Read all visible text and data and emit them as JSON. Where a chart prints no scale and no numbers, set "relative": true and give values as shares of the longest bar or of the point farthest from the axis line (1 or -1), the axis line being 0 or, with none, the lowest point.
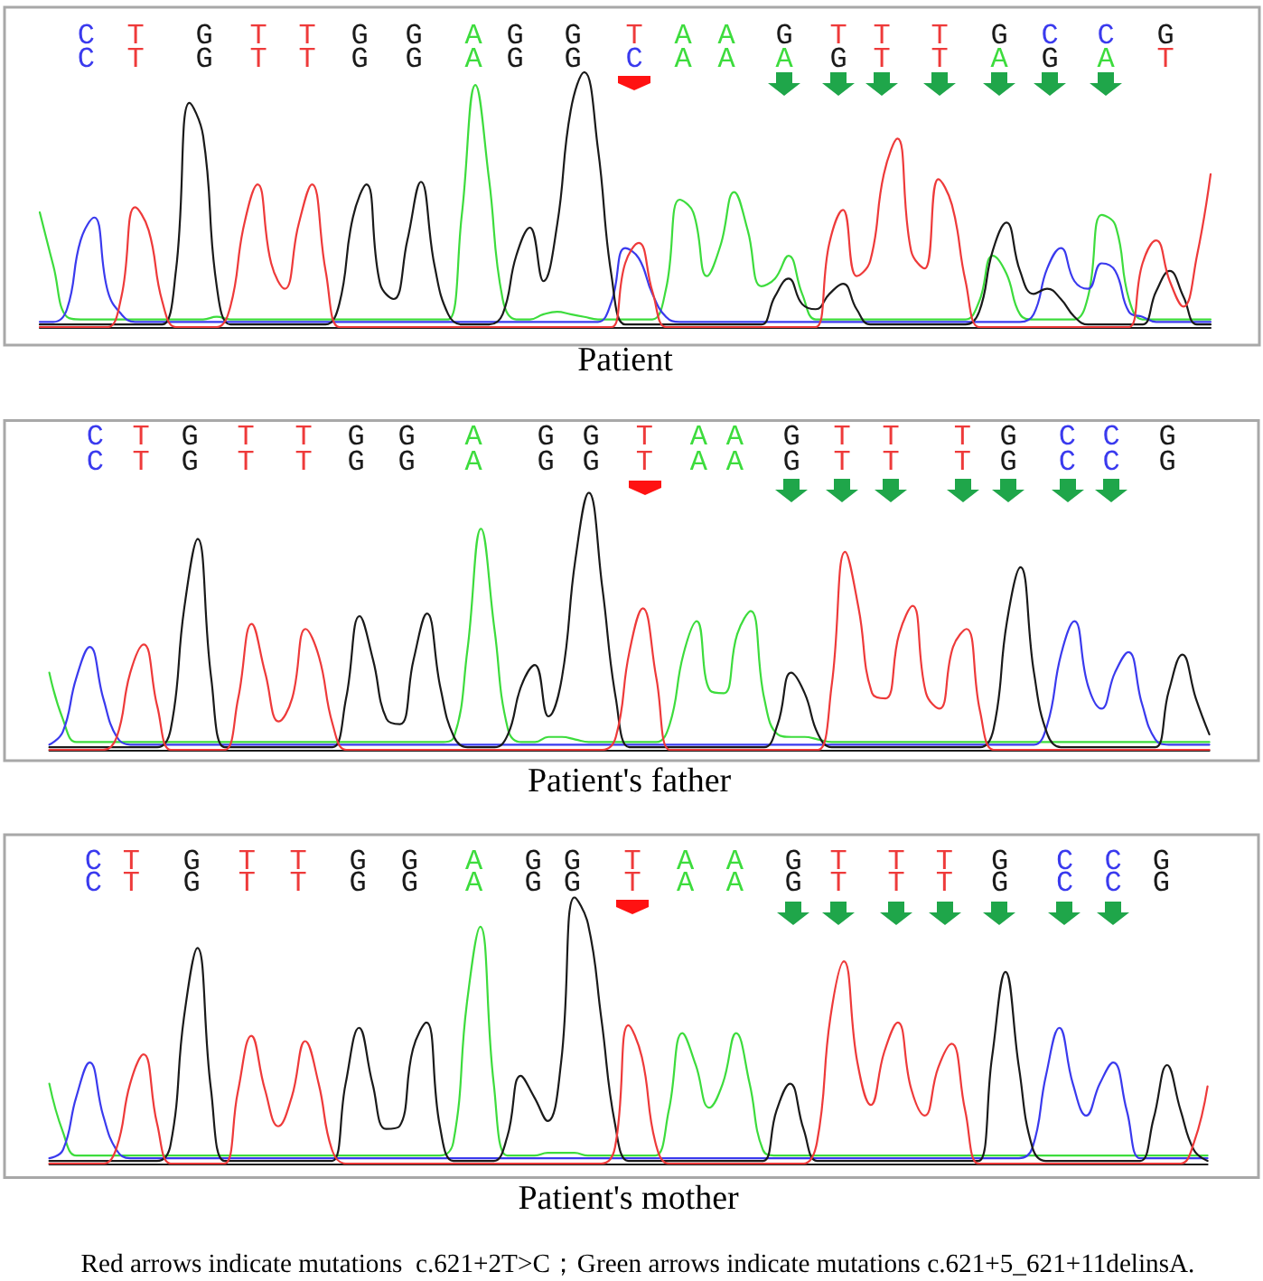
{
  "chart_data": [
    {
      "type": "line",
      "relative": true,
      "xlabel": "Patient",
      "marker": "none",
      "categories": [
        null,
        null,
        null,
        null,
        null,
        null,
        null,
        null,
        null,
        null,
        null,
        null,
        null,
        null,
        null,
        null,
        null,
        null,
        null,
        null,
        null,
        null,
        null,
        null,
        null,
        null,
        null,
        null,
        null,
        null,
        null,
        null,
        null,
        null,
        null,
        null,
        null,
        null,
        null,
        null,
        null,
        null,
        null,
        null,
        null,
        null,
        null,
        null,
        null,
        null,
        null,
        null,
        null,
        null,
        null,
        null,
        null,
        null,
        null,
        null,
        null,
        null,
        null,
        null,
        null,
        null,
        null,
        null,
        null,
        null,
        null,
        null,
        null,
        null,
        null,
        null,
        null,
        null,
        null,
        null,
        null,
        null,
        null,
        null,
        null,
        null,
        null
      ],
      "series": [
        {
          "color": "#3ddc3d",
          "values": [
            0.45,
            0.24,
            0.04,
            0.03,
            0.03,
            0.03,
            0.03,
            0.03,
            0.03,
            0.03,
            0.03,
            0.03,
            0.03,
            0.04,
            0.03,
            0.03,
            0.03,
            0.03,
            0.03,
            0.03,
            0.03,
            0.03,
            0.03,
            0.03,
            0.03,
            0.03,
            0.03,
            0.03,
            0.03,
            0.03,
            0.03,
            0.44,
            0.95,
            0.58,
            0.11,
            0.03,
            0.03,
            0.05,
            0.06,
            0.05,
            0.04,
            0.03,
            0.03,
            0.03,
            0.03,
            0.03,
            0.15,
            0.5,
            0.45,
            0.2,
            0.32,
            0.53,
            0.38,
            0.16,
            0.19,
            0.28,
            0.13,
            0.03,
            0.03,
            0.03,
            0.03,
            0.03,
            0.03,
            0.03,
            0.03,
            0.03,
            0.03,
            0.03,
            0.03,
            0.1,
            0.28,
            0.21,
            0.05,
            0.03,
            0.03,
            0.03,
            0.03,
            0.12,
            0.44,
            0.4,
            0.11,
            0.03,
            0.03,
            0.03,
            0.03,
            0.03,
            0.03
          ]
        },
        {
          "color": "#3a3aee",
          "values": [
            0.02,
            0.02,
            0.07,
            0.34,
            0.43,
            0.14,
            0.05,
            0.02,
            0.02,
            0.02,
            0.02,
            0.02,
            0.02,
            0.02,
            0.02,
            0.02,
            0.02,
            0.02,
            0.02,
            0.02,
            0.02,
            0.02,
            0.02,
            0.02,
            0.02,
            0.02,
            0.02,
            0.02,
            0.02,
            0.02,
            0.02,
            0.02,
            0.02,
            0.02,
            0.02,
            0.02,
            0.02,
            0.02,
            0.02,
            0.02,
            0.02,
            0.02,
            0.1,
            0.31,
            0.27,
            0.13,
            0.04,
            0.02,
            0.02,
            0.02,
            0.02,
            0.02,
            0.02,
            0.02,
            0.02,
            0.02,
            0.02,
            0.02,
            0.02,
            0.02,
            0.02,
            0.02,
            0.02,
            0.02,
            0.02,
            0.02,
            0.02,
            0.02,
            0.02,
            0.02,
            0.02,
            0.02,
            0.02,
            0.05,
            0.23,
            0.31,
            0.18,
            0.15,
            0.25,
            0.22,
            0.06,
            0.04,
            0.02,
            0.02,
            0.02,
            0.02,
            0.02
          ]
        },
        {
          "color": "#1a1a1a",
          "values": [
            0.01,
            0.01,
            0.01,
            0.01,
            0.01,
            0.01,
            0.01,
            0.01,
            0.01,
            0.01,
            0.22,
            0.88,
            0.75,
            0.16,
            0.01,
            0.01,
            0.01,
            0.01,
            0.01,
            0.01,
            0.01,
            0.01,
            0.09,
            0.43,
            0.56,
            0.17,
            0.11,
            0.34,
            0.57,
            0.24,
            0.05,
            0.01,
            0.01,
            0.01,
            0.05,
            0.28,
            0.39,
            0.18,
            0.4,
            0.85,
            1,
            0.7,
            0.2,
            0.01,
            0.01,
            0.01,
            0.01,
            0.01,
            0.01,
            0.01,
            0.01,
            0.01,
            0.01,
            0.01,
            0.12,
            0.19,
            0.09,
            0.07,
            0.13,
            0.17,
            0.07,
            0.01,
            0.01,
            0.01,
            0.01,
            0.01,
            0.01,
            0.01,
            0.01,
            0.06,
            0.3,
            0.41,
            0.22,
            0.13,
            0.15,
            0.11,
            0.04,
            0.01,
            0.01,
            0.01,
            0.01,
            0.01,
            0.14,
            0.22,
            0.12,
            0.01,
            0.01
          ]
        },
        {
          "color": "#ee3a3a",
          "values": [
            0,
            0,
            0,
            0,
            0,
            0,
            0.12,
            0.47,
            0.38,
            0.1,
            0,
            0,
            0,
            0,
            0.08,
            0.4,
            0.56,
            0.25,
            0.15,
            0.4,
            0.56,
            0.22,
            0,
            0,
            0,
            0,
            0,
            0,
            0,
            0,
            0,
            0,
            0,
            0,
            0,
            0,
            0,
            0,
            0,
            0,
            0,
            0,
            0,
            0.25,
            0.33,
            0.14,
            0,
            0,
            0,
            0,
            0,
            0,
            0,
            0,
            0,
            0,
            0,
            0,
            0.33,
            0.46,
            0.2,
            0.26,
            0.6,
            0.74,
            0.3,
            0.23,
            0.58,
            0.48,
            0.18,
            0,
            0,
            0,
            0,
            0,
            0,
            0,
            0,
            0,
            0,
            0,
            0,
            0.25,
            0.34,
            0.18,
            0.08,
            0.28,
            0.6
          ]
        }
      ],
      "annotations": [
        "C T G T T G G A G G T A A G T T T G C C G",
        "C T G T T G G A G G C A A A G T T A G A T"
      ]
    },
    {
      "type": "line",
      "relative": true,
      "xlabel": "Patient's father",
      "marker": "none",
      "categories": [
        null,
        null,
        null,
        null,
        null,
        null,
        null,
        null,
        null,
        null,
        null,
        null,
        null,
        null,
        null,
        null,
        null,
        null,
        null,
        null,
        null,
        null,
        null,
        null,
        null,
        null,
        null,
        null,
        null,
        null,
        null,
        null,
        null,
        null,
        null,
        null,
        null,
        null,
        null,
        null,
        null,
        null,
        null,
        null,
        null,
        null,
        null,
        null,
        null,
        null,
        null,
        null,
        null,
        null,
        null,
        null,
        null,
        null,
        null,
        null,
        null,
        null,
        null,
        null,
        null,
        null,
        null,
        null,
        null,
        null,
        null,
        null,
        null,
        null,
        null,
        null,
        null,
        null,
        null,
        null,
        null,
        null,
        null,
        null,
        null,
        null,
        null
      ],
      "series": [
        {
          "color": "#3ddc3d",
          "values": [
            0.3,
            0.12,
            0.03,
            0.03,
            0.03,
            0.03,
            0.03,
            0.03,
            0.03,
            0.03,
            0.03,
            0.03,
            0.03,
            0.03,
            0.03,
            0.03,
            0.03,
            0.03,
            0.03,
            0.03,
            0.03,
            0.03,
            0.03,
            0.03,
            0.03,
            0.03,
            0.03,
            0.03,
            0.03,
            0.03,
            0.05,
            0.39,
            0.86,
            0.47,
            0.08,
            0.03,
            0.03,
            0.05,
            0.05,
            0.04,
            0.03,
            0.03,
            0.03,
            0.03,
            0.03,
            0.03,
            0.1,
            0.37,
            0.5,
            0.23,
            0.22,
            0.45,
            0.54,
            0.2,
            0.06,
            0.05,
            0.05,
            0.04,
            0.03,
            0.03,
            0.03,
            0.03,
            0.03,
            0.03,
            0.03,
            0.03,
            0.03,
            0.03,
            0.03,
            0.03,
            0.03,
            0.03,
            0.03,
            0.03,
            0.03,
            0.03,
            0.03,
            0.03,
            0.03,
            0.03,
            0.03,
            0.03,
            0.03,
            0.03,
            0.03,
            0.03,
            0.03
          ]
        },
        {
          "color": "#3a3aee",
          "values": [
            0.02,
            0.07,
            0.28,
            0.4,
            0.2,
            0.05,
            0.02,
            0.02,
            0.02,
            0.02,
            0.02,
            0.02,
            0.02,
            0.02,
            0.02,
            0.02,
            0.02,
            0.02,
            0.02,
            0.02,
            0.02,
            0.02,
            0.02,
            0.02,
            0.02,
            0.02,
            0.02,
            0.02,
            0.02,
            0.02,
            0.02,
            0.02,
            0.02,
            0.02,
            0.02,
            0.02,
            0.02,
            0.02,
            0.02,
            0.02,
            0.02,
            0.02,
            0.02,
            0.02,
            0.02,
            0.02,
            0.02,
            0.02,
            0.02,
            0.02,
            0.02,
            0.02,
            0.02,
            0.02,
            0.02,
            0.02,
            0.02,
            0.02,
            0.02,
            0.02,
            0.02,
            0.02,
            0.02,
            0.02,
            0.02,
            0.02,
            0.02,
            0.02,
            0.02,
            0.02,
            0.02,
            0.02,
            0.02,
            0.02,
            0.1,
            0.37,
            0.5,
            0.25,
            0.16,
            0.3,
            0.38,
            0.18,
            0.04,
            0.02,
            0.02,
            0.02,
            0.02
          ]
        },
        {
          "color": "#1a1a1a",
          "values": [
            0.01,
            0.01,
            0.01,
            0.01,
            0.01,
            0.01,
            0.01,
            0.01,
            0.01,
            0.08,
            0.55,
            0.82,
            0.28,
            0.01,
            0.01,
            0.01,
            0.01,
            0.01,
            0.01,
            0.01,
            0.01,
            0.01,
            0.2,
            0.52,
            0.35,
            0.12,
            0.1,
            0.35,
            0.53,
            0.24,
            0.05,
            0.01,
            0.01,
            0.01,
            0.06,
            0.25,
            0.33,
            0.13,
            0.28,
            0.74,
            1,
            0.63,
            0.2,
            0.01,
            0.01,
            0.01,
            0.01,
            0.01,
            0.01,
            0.01,
            0.01,
            0.01,
            0.01,
            0.01,
            0.1,
            0.3,
            0.22,
            0.06,
            0.01,
            0.01,
            0.01,
            0.01,
            0.01,
            0.01,
            0.01,
            0.01,
            0.01,
            0.01,
            0.01,
            0.01,
            0.08,
            0.5,
            0.71,
            0.3,
            0.06,
            0.01,
            0.01,
            0.01,
            0.01,
            0.01,
            0.01,
            0.01,
            0.01,
            0.23,
            0.37,
            0.2,
            0.06
          ]
        },
        {
          "color": "#ee3a3a",
          "values": [
            0,
            0,
            0,
            0,
            0,
            0.05,
            0.3,
            0.41,
            0.17,
            0,
            0,
            0,
            0,
            0,
            0.2,
            0.49,
            0.3,
            0.11,
            0.2,
            0.47,
            0.36,
            0.1,
            0,
            0,
            0,
            0,
            0,
            0,
            0,
            0,
            0,
            0,
            0,
            0,
            0,
            0,
            0,
            0,
            0,
            0,
            0,
            0,
            0.05,
            0.38,
            0.55,
            0.28,
            0,
            0,
            0,
            0,
            0,
            0,
            0,
            0,
            0,
            0,
            0,
            0,
            0.25,
            0.77,
            0.55,
            0.22,
            0.2,
            0.45,
            0.56,
            0.22,
            0.16,
            0.4,
            0.47,
            0.15,
            0,
            0,
            0,
            0,
            0,
            0,
            0,
            0,
            0,
            0,
            0,
            0,
            0,
            0,
            0,
            0,
            0
          ]
        }
      ],
      "annotations": [
        "C T G T T G G A G G T A A G T T T G C C G",
        "C T G T T G G A G G T A A G T T T G C C G"
      ]
    },
    {
      "type": "line",
      "relative": true,
      "xlabel": "Patient's mother",
      "marker": "none",
      "categories": [
        null,
        null,
        null,
        null,
        null,
        null,
        null,
        null,
        null,
        null,
        null,
        null,
        null,
        null,
        null,
        null,
        null,
        null,
        null,
        null,
        null,
        null,
        null,
        null,
        null,
        null,
        null,
        null,
        null,
        null,
        null,
        null,
        null,
        null,
        null,
        null,
        null,
        null,
        null,
        null,
        null,
        null,
        null,
        null,
        null,
        null,
        null,
        null,
        null,
        null,
        null,
        null,
        null,
        null,
        null,
        null,
        null,
        null,
        null,
        null,
        null,
        null,
        null,
        null,
        null,
        null,
        null,
        null,
        null,
        null,
        null,
        null,
        null,
        null,
        null,
        null,
        null,
        null,
        null,
        null,
        null,
        null,
        null,
        null,
        null,
        null,
        null
      ],
      "series": [
        {
          "color": "#3ddc3d",
          "values": [
            0.3,
            0.12,
            0.03,
            0.03,
            0.03,
            0.03,
            0.03,
            0.03,
            0.03,
            0.03,
            0.03,
            0.03,
            0.03,
            0.03,
            0.03,
            0.03,
            0.03,
            0.03,
            0.03,
            0.03,
            0.03,
            0.03,
            0.03,
            0.03,
            0.03,
            0.03,
            0.03,
            0.03,
            0.03,
            0.03,
            0.08,
            0.6,
            0.89,
            0.3,
            0.03,
            0.03,
            0.03,
            0.04,
            0.04,
            0.04,
            0.03,
            0.03,
            0.03,
            0.03,
            0.03,
            0.03,
            0.2,
            0.49,
            0.37,
            0.21,
            0.3,
            0.49,
            0.3,
            0.05,
            0.03,
            0.03,
            0.03,
            0.03,
            0.03,
            0.03,
            0.03,
            0.03,
            0.03,
            0.03,
            0.03,
            0.03,
            0.03,
            0.03,
            0.03,
            0.03,
            0.03,
            0.03,
            0.03,
            0.03,
            0.03,
            0.03,
            0.03,
            0.03,
            0.03,
            0.03,
            0.03,
            0.03,
            0.03,
            0.03,
            0.03,
            0.03,
            0.03
          ]
        },
        {
          "color": "#3a3aee",
          "values": [
            0.02,
            0.05,
            0.25,
            0.38,
            0.18,
            0.05,
            0.02,
            0.02,
            0.02,
            0.02,
            0.02,
            0.02,
            0.02,
            0.02,
            0.02,
            0.02,
            0.02,
            0.02,
            0.02,
            0.02,
            0.02,
            0.02,
            0.02,
            0.02,
            0.02,
            0.02,
            0.02,
            0.02,
            0.02,
            0.02,
            0.02,
            0.02,
            0.02,
            0.02,
            0.02,
            0.02,
            0.02,
            0.02,
            0.02,
            0.02,
            0.02,
            0.02,
            0.02,
            0.02,
            0.02,
            0.02,
            0.02,
            0.02,
            0.02,
            0.02,
            0.02,
            0.02,
            0.02,
            0.02,
            0.02,
            0.02,
            0.02,
            0.02,
            0.02,
            0.02,
            0.02,
            0.02,
            0.02,
            0.02,
            0.02,
            0.02,
            0.02,
            0.02,
            0.02,
            0.02,
            0.02,
            0.02,
            0.02,
            0.06,
            0.33,
            0.51,
            0.3,
            0.18,
            0.3,
            0.38,
            0.2,
            0.02,
            0.02,
            0.02,
            0.02,
            0.02,
            0.02
          ]
        },
        {
          "color": "#1a1a1a",
          "values": [
            0.01,
            0.01,
            0.01,
            0.01,
            0.01,
            0.01,
            0.01,
            0.01,
            0.01,
            0.07,
            0.55,
            0.81,
            0.28,
            0.01,
            0.01,
            0.01,
            0.01,
            0.01,
            0.01,
            0.01,
            0.01,
            0.01,
            0.3,
            0.51,
            0.3,
            0.13,
            0.14,
            0.43,
            0.53,
            0.14,
            0.01,
            0.01,
            0.01,
            0.01,
            0.1,
            0.33,
            0.25,
            0.16,
            0.38,
            1,
            0.9,
            0.54,
            0.15,
            0.01,
            0.01,
            0.01,
            0.01,
            0.01,
            0.01,
            0.01,
            0.01,
            0.01,
            0.01,
            0.01,
            0.2,
            0.3,
            0.13,
            0.01,
            0.01,
            0.01,
            0.01,
            0.01,
            0.01,
            0.01,
            0.01,
            0.01,
            0.01,
            0.01,
            0.01,
            0.01,
            0.4,
            0.72,
            0.36,
            0.06,
            0.01,
            0.01,
            0.01,
            0.01,
            0.01,
            0.01,
            0.01,
            0.01,
            0.17,
            0.37,
            0.2,
            0.05,
            0.01
          ]
        },
        {
          "color": "#ee3a3a",
          "values": [
            0,
            0,
            0,
            0,
            0,
            0.06,
            0.3,
            0.41,
            0.15,
            0,
            0,
            0,
            0,
            0,
            0.27,
            0.48,
            0.28,
            0.14,
            0.25,
            0.46,
            0.3,
            0.05,
            0,
            0,
            0,
            0,
            0,
            0,
            0,
            0,
            0,
            0,
            0,
            0,
            0,
            0,
            0,
            0,
            0,
            0,
            0,
            0,
            0.06,
            0.52,
            0.4,
            0.08,
            0,
            0,
            0,
            0,
            0,
            0,
            0,
            0,
            0,
            0,
            0,
            0.08,
            0.55,
            0.76,
            0.38,
            0.22,
            0.42,
            0.53,
            0.28,
            0.18,
            0.36,
            0.45,
            0.2,
            0,
            0,
            0,
            0,
            0,
            0,
            0,
            0,
            0,
            0,
            0,
            0,
            0,
            0,
            0,
            0,
            0.08,
            0.29
          ]
        }
      ],
      "annotations": [
        "C T G T T G G A G G T A A G T T T G C C G",
        "C T G T T G G A G G T A A G T T T G C C G",
        "Red arrows indicate mutations  c.621+2T>C；Green arrows indicate mutations c.621+5_621+11delinsA."
      ]
    }
  ]
}
